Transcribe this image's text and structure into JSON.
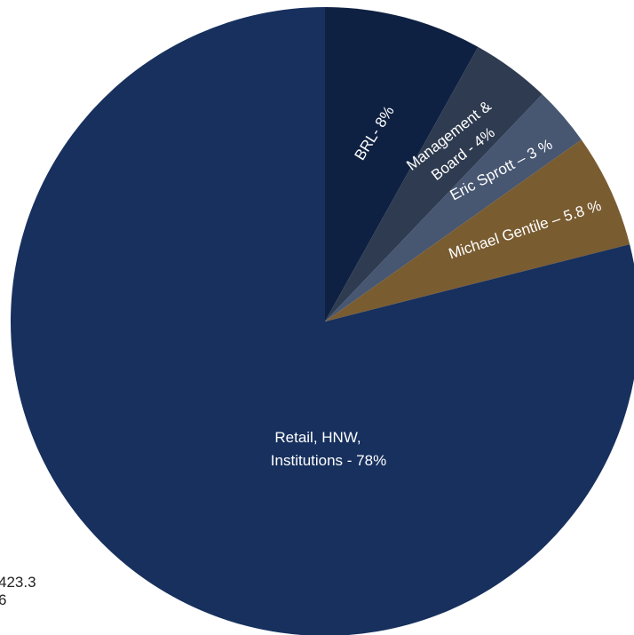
{
  "chart_data": {
    "type": "pie",
    "start_angle_deg": 0,
    "direction": "clockwise",
    "slices": [
      {
        "name": "BRL",
        "value": 8,
        "color": "#0f2142",
        "label_lines": [
          "BRL- 8%"
        ]
      },
      {
        "name": "Management & Board",
        "value": 4,
        "color": "#2f3b50",
        "label_lines": [
          "Management &",
          "Board - 4%"
        ]
      },
      {
        "name": "Eric Sprott",
        "value": 3,
        "color": "#475671",
        "label_lines": [
          "Eric Sprott – 3 %"
        ]
      },
      {
        "name": "Michael Gentile",
        "value": 5.8,
        "color": "#7a5c31",
        "label_lines": [
          "Michael Gentile – 5.8 %"
        ]
      },
      {
        "name": "Retail, HNW, Institutions",
        "value": 78,
        "color": "#17305e",
        "label_lines": [
          "Retail, HNW,",
          "Institutions - 78%"
        ]
      }
    ]
  },
  "side_notes": [
    "423.3",
    "6"
  ]
}
